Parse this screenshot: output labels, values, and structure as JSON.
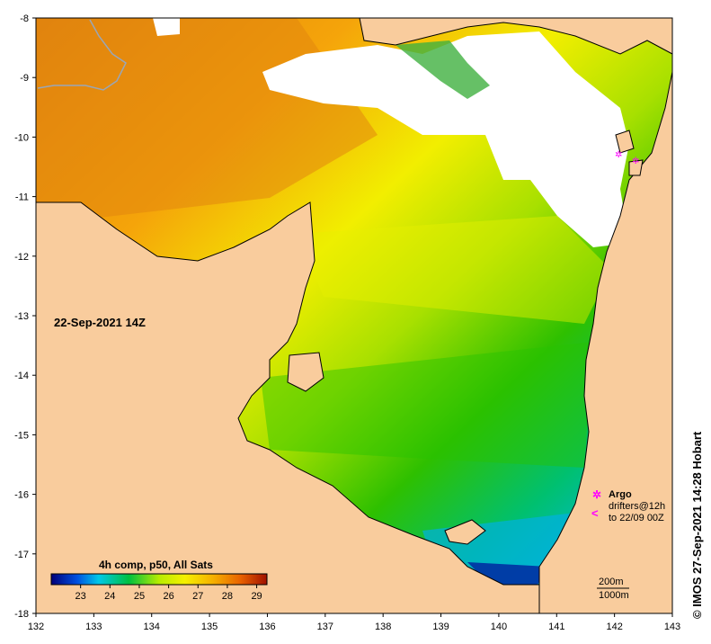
{
  "title_timestamp": "22-Sep-2021 14Z",
  "credit": "©  IMOS 27-Sep-2021 14:28 Hobart",
  "colorbar": {
    "title": "4h comp, p50, All Sats",
    "ticks": [
      "23",
      "24",
      "25",
      "26",
      "27",
      "28",
      "29"
    ]
  },
  "legend": {
    "argo_label": "Argo",
    "drifters_label": "drifters@12h",
    "drifters_to": "to 22/09 00Z",
    "argo_symbol": "✲",
    "drifter_symbol": "<"
  },
  "depth_contours": {
    "c200": "200m",
    "c1000": "1000m"
  },
  "axes": {
    "x_ticks": [
      "132",
      "133",
      "134",
      "135",
      "136",
      "137",
      "138",
      "139",
      "140",
      "141",
      "142",
      "143"
    ],
    "y_ticks": [
      "-8",
      "-9",
      "-10",
      "-11",
      "-12",
      "-13",
      "-14",
      "-15",
      "-16",
      "-17",
      "-18"
    ]
  },
  "colors": {
    "land": "#f9cc9d",
    "no_data": "#ffffff",
    "argo": "#ff00ff",
    "coast": "#000000"
  }
}
